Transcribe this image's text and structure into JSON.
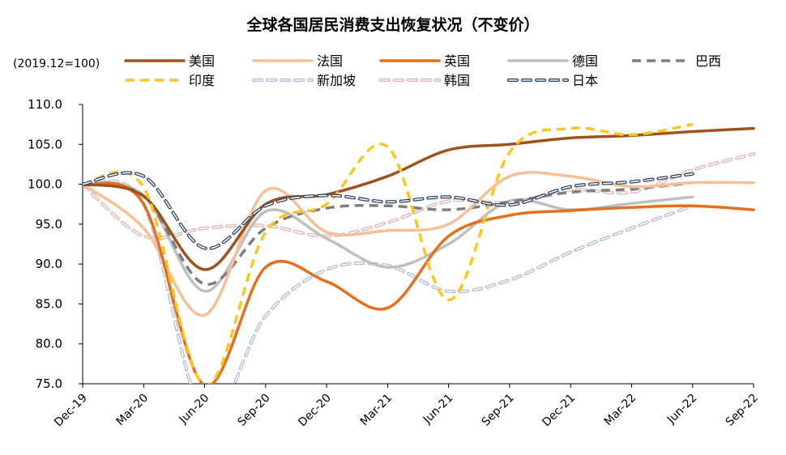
{
  "chart_data": {
    "type": "line",
    "title": "全球各国居民消费支出恢复状况（不变价）",
    "unit_note": "(2019.12=100)",
    "xlabel": "",
    "ylabel": "",
    "ylim": [
      75,
      110
    ],
    "yticks": [
      "75.0",
      "80.0",
      "85.0",
      "90.0",
      "95.0",
      "100.0",
      "105.0",
      "110.0"
    ],
    "x_ticks": [
      "Dec-19",
      "Mar-20",
      "Jun-20",
      "Sep-20",
      "Dec-20",
      "Mar-21",
      "Jun-21",
      "Sep-21",
      "Dec-21",
      "Mar-22",
      "Jun-22",
      "Sep-22"
    ],
    "grid": false,
    "legend_position": "top",
    "series": [
      {
        "name": "美国",
        "color": "#a0521c",
        "dash": "solid",
        "x": [
          0,
          3,
          6,
          9,
          12,
          15,
          18,
          21,
          24,
          27,
          30,
          33
        ],
        "y": [
          100,
          98.5,
          89.3,
          97.5,
          98.7,
          101,
          104.3,
          105,
          105.8,
          106.1,
          106.6,
          107
        ]
      },
      {
        "name": "法国",
        "color": "#f5bf97",
        "dash": "solid",
        "x": [
          0,
          3,
          6,
          9,
          12,
          15,
          18,
          21,
          24,
          27,
          30,
          33
        ],
        "y": [
          100,
          94.5,
          83.6,
          99.2,
          94,
          94.2,
          95,
          101,
          101,
          99.7,
          100.2,
          100.2
        ]
      },
      {
        "name": "英国",
        "color": "#e4701e",
        "dash": "solid",
        "x": [
          0,
          3,
          6,
          9,
          12,
          15,
          18,
          21,
          24,
          27,
          30,
          33
        ],
        "y": [
          100,
          97.5,
          74.8,
          89.6,
          87.8,
          84.5,
          93.5,
          96.1,
          96.7,
          97.1,
          97.3,
          96.8
        ]
      },
      {
        "name": "德国",
        "color": "#bfbfbf",
        "dash": "solid",
        "x": [
          0,
          3,
          6,
          9,
          12,
          15,
          18,
          21,
          24,
          27,
          30
        ],
        "y": [
          100,
          98.6,
          86.6,
          96.6,
          93.2,
          89.6,
          92.5,
          97.9,
          96.8,
          97.6,
          98.4
        ]
      },
      {
        "name": "巴西",
        "color": "#7f7f7f",
        "dash": "dash",
        "x": [
          0,
          3,
          6,
          9,
          12,
          15,
          18,
          21,
          24,
          27,
          30
        ],
        "y": [
          100,
          98.5,
          87.5,
          94.5,
          97,
          97.3,
          96.8,
          97.8,
          99,
          99.4,
          100.2
        ]
      },
      {
        "name": "印度",
        "color": "#fcc620",
        "dash": "dash",
        "x": [
          0,
          3,
          6,
          9,
          12,
          15,
          18,
          21,
          24,
          27,
          30
        ],
        "y": [
          100,
          99.6,
          74.8,
          94,
          97.5,
          104.7,
          85.5,
          104,
          107,
          106.2,
          107.5
        ]
      },
      {
        "name": "新加坡",
        "color": "#a9bad6",
        "dash": "dash-outline",
        "x": [
          0,
          3,
          6,
          9,
          12,
          15,
          18,
          21,
          24,
          27,
          30
        ],
        "y": [
          100,
          97.5,
          71,
          83.5,
          89.3,
          89.8,
          86.6,
          88,
          91.5,
          94.5,
          97.3
        ]
      },
      {
        "name": "韩国",
        "color": "#e3aeab",
        "dash": "dash-outline",
        "x": [
          0,
          3,
          6,
          9,
          12,
          15,
          18,
          21,
          24,
          27,
          30,
          33
        ],
        "y": [
          100,
          93.5,
          94.5,
          94.8,
          93.5,
          95.2,
          97.9,
          97.7,
          99.3,
          99,
          101.8,
          103.8
        ]
      },
      {
        "name": "日本",
        "color": "#203864",
        "dash": "dash-outline",
        "x": [
          0,
          3,
          6,
          9,
          12,
          15,
          18,
          21,
          24,
          27,
          30
        ],
        "y": [
          100,
          101,
          92,
          97.3,
          98.6,
          97.8,
          98.4,
          97.4,
          99.7,
          100.3,
          101.3
        ]
      }
    ]
  }
}
